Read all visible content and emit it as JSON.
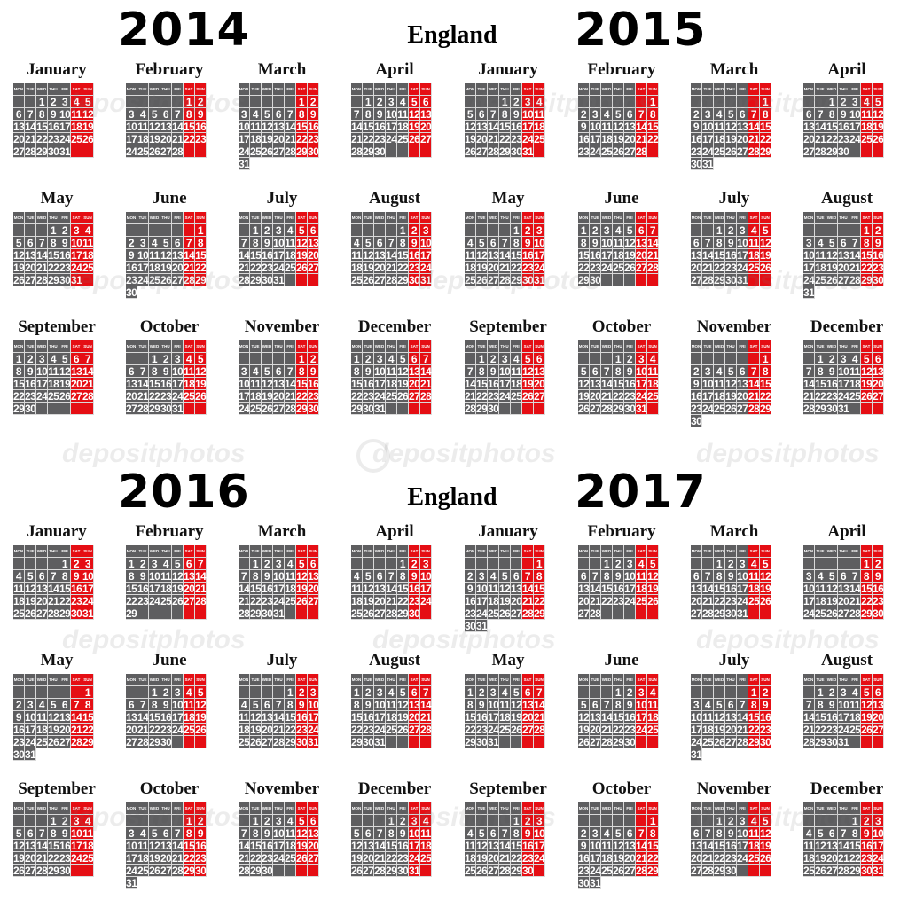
{
  "blocks": [
    {
      "country": "England",
      "years": [
        "2014",
        "2015"
      ]
    },
    {
      "country": "England",
      "years": [
        "2016",
        "2017"
      ]
    }
  ],
  "weekday_headers": [
    "MON",
    "TUE",
    "WED",
    "THU",
    "FRI",
    "SAT",
    "SUN"
  ],
  "month_names": [
    "January",
    "February",
    "March",
    "April",
    "May",
    "June",
    "July",
    "August",
    "September",
    "October",
    "November",
    "December"
  ],
  "watermark_text": "depositphotos",
  "colors": {
    "weekday_cell": "#5e5e60",
    "weekend_cell": "#e50e14",
    "background": "#ffffff"
  }
}
